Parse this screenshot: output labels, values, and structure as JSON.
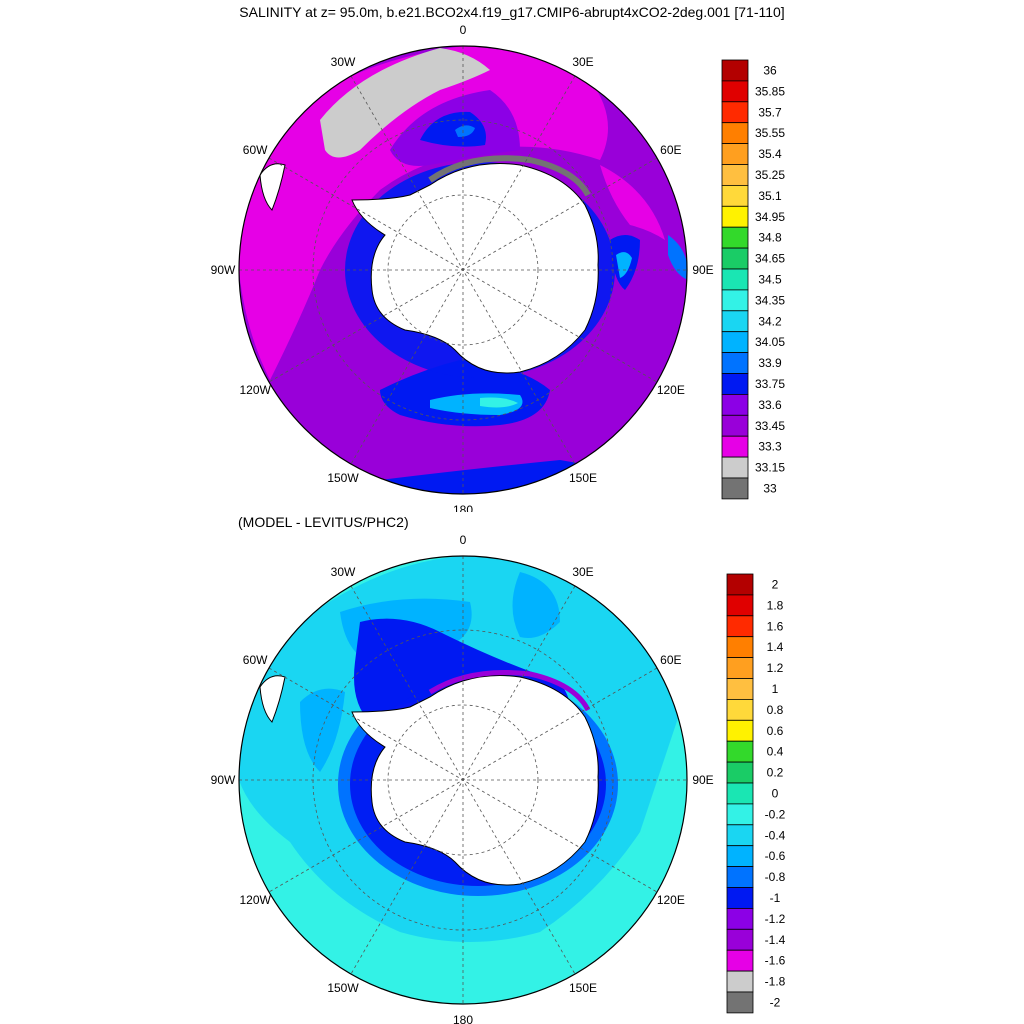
{
  "title": "SALINITY at z=  95.0m, b.e21.BCO2x4.f19_g17.CMIP6-abrupt4xCO2-2deg.001 [71-110]",
  "diff_title": "(MODEL - LEVITUS/PHC2)",
  "lon_labels": [
    "0",
    "30E",
    "60E",
    "90E",
    "120E",
    "150E",
    "180",
    "150W",
    "120W",
    "90W",
    "60W",
    "30W"
  ],
  "colors": {
    "land": "#ffffff",
    "coast": "#000000",
    "grid": "#555555"
  },
  "maps": [
    {
      "name": "salinity",
      "colorbar": {
        "labels": [
          "36",
          "35.85",
          "35.7",
          "35.55",
          "35.4",
          "35.25",
          "35.1",
          "34.95",
          "34.8",
          "34.65",
          "34.5",
          "34.35",
          "34.2",
          "34.05",
          "33.9",
          "33.75",
          "33.6",
          "33.45",
          "33.3",
          "33.15",
          "33"
        ],
        "colors": [
          "#b30000",
          "#e00000",
          "#ff2a00",
          "#ff7f00",
          "#ff9f1f",
          "#ffbf40",
          "#ffd93a",
          "#fff200",
          "#33d92b",
          "#1acc66",
          "#1ae6b3",
          "#33f2e6",
          "#1ad6f2",
          "#00b3ff",
          "#0073ff",
          "#0019f2",
          "#8c00e6",
          "#9900d9",
          "#e600e6",
          "#cccccc",
          "#737373"
        ]
      }
    },
    {
      "name": "difference",
      "colorbar": {
        "labels": [
          "2",
          "1.8",
          "1.6",
          "1.4",
          "1.2",
          "1",
          "0.8",
          "0.6",
          "0.4",
          "0.2",
          "0",
          "-0.2",
          "-0.4",
          "-0.6",
          "-0.8",
          "-1",
          "-1.2",
          "-1.4",
          "-1.6",
          "-1.8",
          "-2"
        ],
        "colors": [
          "#b30000",
          "#e00000",
          "#ff2a00",
          "#ff7f00",
          "#ff9f1f",
          "#ffbf40",
          "#ffd93a",
          "#fff200",
          "#33d92b",
          "#1acc66",
          "#1ae6b3",
          "#33f2e6",
          "#1ad6f2",
          "#00b3ff",
          "#0073ff",
          "#0019f2",
          "#8c00e6",
          "#9900d9",
          "#e600e6",
          "#cccccc",
          "#737373"
        ]
      }
    }
  ]
}
